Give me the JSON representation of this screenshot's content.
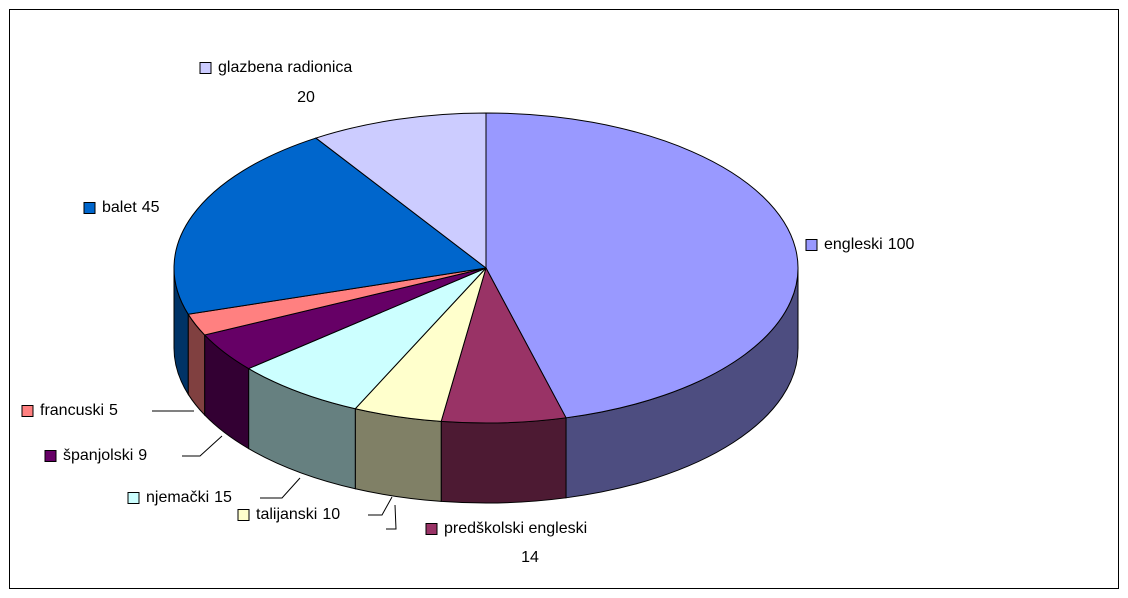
{
  "chart_data": {
    "type": "pie3d",
    "categories": [
      "engleski",
      "predškolski engleski",
      "talijanski",
      "njemački",
      "španjolski",
      "francuski",
      "balet",
      "glazbena radionica"
    ],
    "values": [
      100,
      14,
      10,
      15,
      9,
      5,
      45,
      20
    ],
    "colors": [
      "#9999ff",
      "#993366",
      "#ffffcc",
      "#ccffff",
      "#660066",
      "#ff8080",
      "#0066cc",
      "#ccccff"
    ]
  }
}
